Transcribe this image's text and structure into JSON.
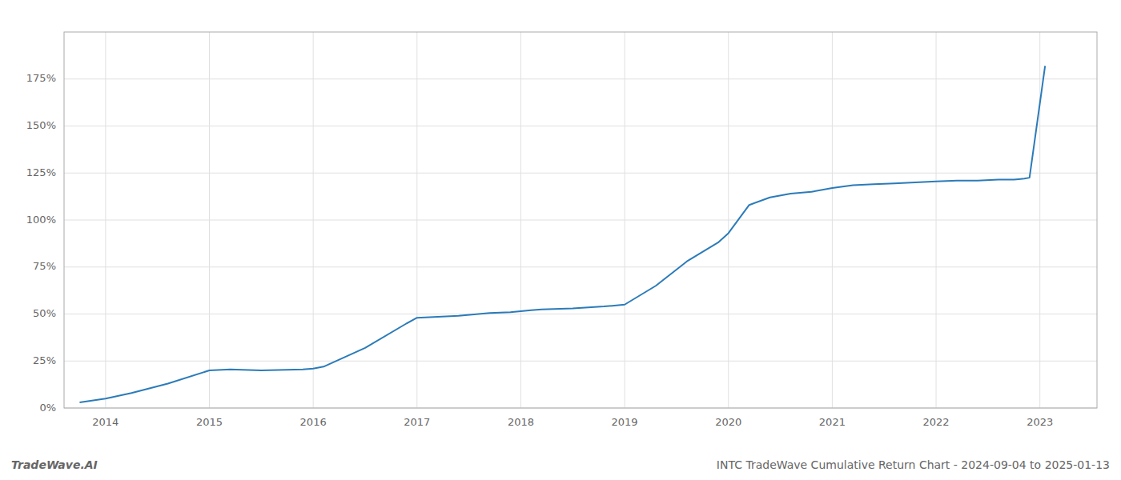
{
  "chart_data": {
    "type": "line",
    "title": "INTC TradeWave Cumulative Return Chart - 2024-09-04 to 2025-01-13",
    "annotations": [
      "TradeWave.AI"
    ],
    "x": [
      2013.75,
      2014.0,
      2014.25,
      2014.6,
      2015.0,
      2015.2,
      2015.5,
      2015.9,
      2016.0,
      2016.1,
      2016.5,
      2016.9,
      2017.0,
      2017.4,
      2017.7,
      2017.9,
      2018.0,
      2018.1,
      2018.2,
      2018.5,
      2018.8,
      2019.0,
      2019.3,
      2019.6,
      2019.9,
      2020.0,
      2020.2,
      2020.4,
      2020.6,
      2020.8,
      2021.0,
      2021.2,
      2021.4,
      2021.6,
      2021.8,
      2022.0,
      2022.2,
      2022.4,
      2022.6,
      2022.75,
      2022.85,
      2022.9,
      2023.05
    ],
    "values": [
      3.0,
      5.0,
      8.0,
      13.0,
      20.0,
      20.5,
      20.0,
      20.5,
      21.0,
      22.0,
      32.0,
      45.0,
      48.0,
      49.0,
      50.5,
      51.0,
      51.5,
      52.0,
      52.5,
      53.0,
      54.0,
      55.0,
      65.0,
      78.0,
      88.0,
      93.0,
      108.0,
      112.0,
      114.0,
      115.0,
      117.0,
      118.5,
      119.0,
      119.5,
      120.0,
      120.5,
      121.0,
      121.0,
      121.5,
      121.5,
      122.0,
      122.5,
      182.0
    ],
    "color": "#2b7bb9",
    "xlim": [
      2013.6,
      2023.55
    ],
    "ylim": [
      0,
      200
    ],
    "xticks": [
      2014,
      2015,
      2016,
      2017,
      2018,
      2019,
      2020,
      2021,
      2022,
      2023
    ],
    "yticks": [
      {
        "value": 0,
        "label": "0%"
      },
      {
        "value": 25,
        "label": "25%"
      },
      {
        "value": 50,
        "label": "50%"
      },
      {
        "value": 75,
        "label": "75%"
      },
      {
        "value": 100,
        "label": "100%"
      },
      {
        "value": 125,
        "label": "125%"
      },
      {
        "value": 150,
        "label": "150%"
      },
      {
        "value": 175,
        "label": "175%"
      }
    ],
    "grid": true
  }
}
